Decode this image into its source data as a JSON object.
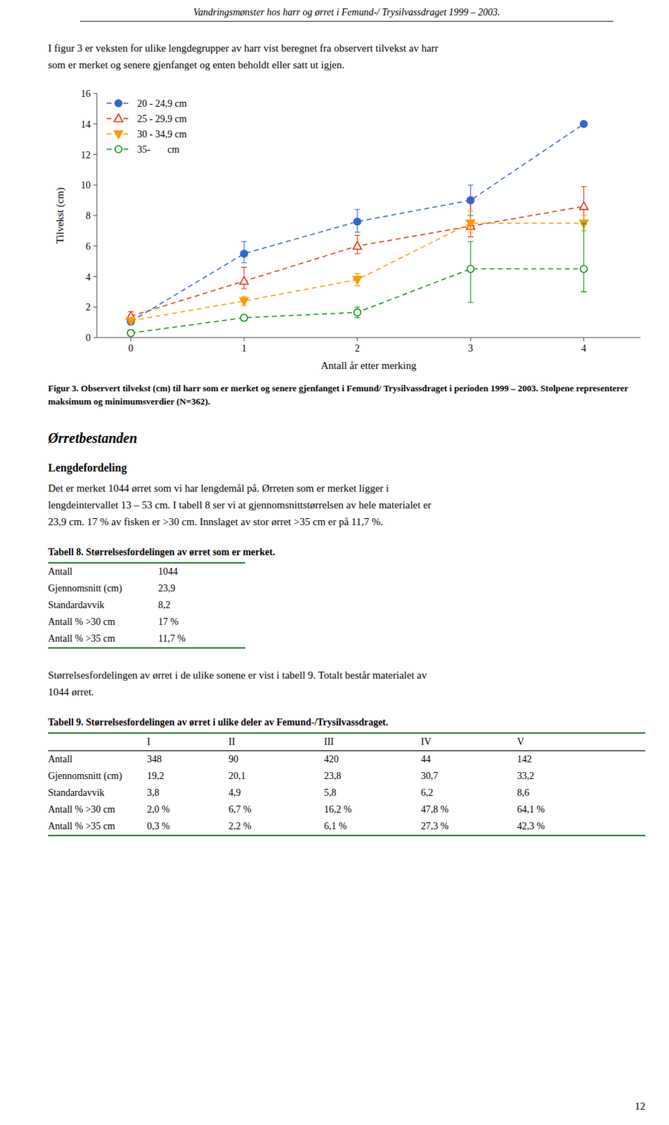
{
  "header": "Vandringsmønster hos harr og ørret i Femund-/ Trysilvassdraget 1999 – 2003.",
  "intro": [
    "I figur 3 er veksten for ulike lengdegrupper av harr vist beregnet fra observert tilvekst av harr",
    "som er merket og senere gjenfanget og enten beholdt eller satt ut igjen."
  ],
  "chart_data": {
    "type": "line",
    "xlabel": "Antall år etter merking",
    "ylabel": "Tilvekst (cm)",
    "x": [
      0,
      1,
      2,
      3,
      4
    ],
    "xlim": [
      -0.3,
      4.5
    ],
    "xticks": [
      0,
      1,
      2,
      3,
      4
    ],
    "ylim": [
      0,
      16
    ],
    "yticks": [
      0,
      2,
      4,
      6,
      8,
      10,
      12,
      14,
      16
    ],
    "grid": false,
    "legend": "upper-left",
    "series": [
      {
        "name": "20 - 24,9 cm",
        "values": [
          1.05,
          5.5,
          7.6,
          9.0,
          14.0
        ],
        "yerr_low": [
          0.2,
          0.6,
          0.7,
          1.0,
          0.0
        ],
        "yerr_high": [
          0.2,
          0.8,
          0.8,
          1.0,
          0.0
        ],
        "marker": "filled-circle",
        "line_style": "dashed"
      },
      {
        "name": "25 - 29,9 cm",
        "values": [
          1.4,
          3.7,
          6.0,
          7.3,
          8.6
        ],
        "yerr_low": [
          0.3,
          0.5,
          0.5,
          0.7,
          1.2
        ],
        "yerr_high": [
          0.3,
          0.9,
          0.7,
          1.5,
          1.3
        ],
        "marker": "open-triangle-up",
        "line_style": "dashed"
      },
      {
        "name": "30 - 34,9 cm",
        "values": [
          1.1,
          2.4,
          3.8,
          7.5,
          7.5
        ],
        "yerr_low": [
          0.15,
          0.3,
          0.4,
          0.6,
          0.5
        ],
        "yerr_high": [
          0.15,
          0.3,
          0.4,
          0.8,
          0.5
        ],
        "marker": "filled-triangle-down",
        "line_style": "dashed"
      },
      {
        "name": "35-       cm",
        "values": [
          0.3,
          1.3,
          1.65,
          4.5,
          4.5
        ],
        "yerr_low": [
          0.2,
          0.2,
          0.35,
          2.2,
          1.5
        ],
        "yerr_high": [
          0.2,
          0.2,
          0.35,
          1.8,
          3.0
        ],
        "marker": "open-circle",
        "line_style": "dashed"
      }
    ]
  },
  "caption": "Figur 3. Observert tilvekst (cm) til harr som er merket og senere gjenfanget i Femund/ Trysilvassdraget i perioden 1999 – 2003. Stolpene representerer maksimum og minimumsverdier (N=362).",
  "section_heading": "Ørretbestanden",
  "subsection_heading": "Lengdefordeling",
  "body_text1": [
    "Det er merket 1044 ørret som vi har lengdemål på. Ørreten som er merket ligger i",
    "lengdeintervallet 13 – 53 cm. I tabell 8 ser vi at gjennomsnittstørrelsen av hele materialet er",
    "23,9 cm. 17 % av fisken er >30 cm. Innslaget av stor ørret >35 cm er på 11,7 %."
  ],
  "table8": {
    "heading": "Tabell 8.  Størrelsesfordelingen av ørret som er merket.",
    "rows": [
      {
        "label": "Antall",
        "cells": [
          "1044"
        ]
      },
      {
        "label": "Gjennomsnitt (cm)",
        "cells": [
          "23,9"
        ]
      },
      {
        "label": "Standardavvik",
        "cells": [
          "8,2"
        ]
      },
      {
        "label": "Antall % >30 cm",
        "cells": [
          "17 %"
        ]
      },
      {
        "label": "Antall % >35 cm",
        "cells": [
          "11,7 %"
        ]
      }
    ]
  },
  "body_text2": [
    "Størrelsesfordelingen av ørret i de ulike sonene er vist i tabell 9. Totalt består materialet av",
    "1044 ørret."
  ],
  "table9": {
    "heading": "Tabell 9.  Størrelsesfordelingen av ørret i ulike deler av Femund-/Trysilvassdraget.",
    "columns": [
      "I",
      "II",
      "III",
      "IV",
      "V"
    ],
    "rows": [
      {
        "label": "Antall",
        "cells": [
          "348",
          "90",
          "420",
          "44",
          "142"
        ]
      },
      {
        "label": "Gjennomsnitt (cm)",
        "cells": [
          "19,2",
          "20,1",
          "23,8",
          "30,7",
          "33,2"
        ]
      },
      {
        "label": "Standardavvik",
        "cells": [
          "3,8",
          "4,9",
          "5,8",
          "6,2",
          "8,6"
        ]
      },
      {
        "label": "Antall % >30 cm",
        "cells": [
          "2,0 %",
          "6,7 %",
          "16,2 %",
          "47,8 %",
          "64,1 %"
        ]
      },
      {
        "label": "Antall % >35 cm",
        "cells": [
          "0,3 %",
          "2,2 %",
          "6,1 %",
          "27,3 %",
          "42,3 %"
        ]
      }
    ]
  },
  "page_number": "12",
  "bg_color": "#ffffff",
  "text_color": "#000000",
  "table_line_color": "#2e7d32"
}
